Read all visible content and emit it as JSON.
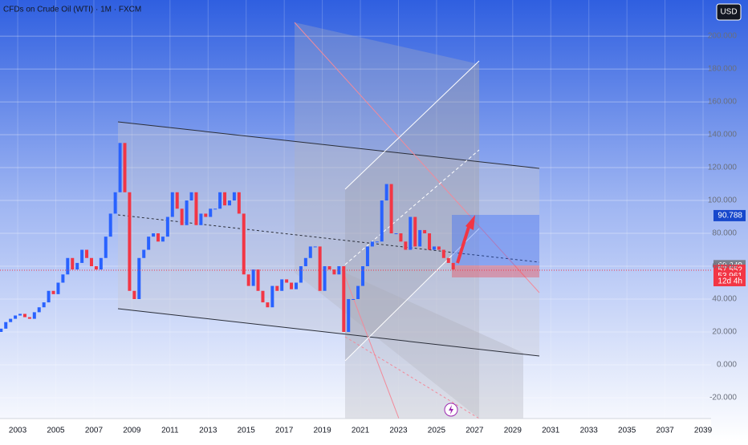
{
  "chart_data": {
    "type": "candlestick",
    "title": "CFDs on Crude Oil (WTI) · 1M · FXCM",
    "currency": "USD",
    "x": [
      2002.125,
      2002.375,
      2002.625,
      2002.875,
      2003.125,
      2003.375,
      2003.625,
      2003.875,
      2004.125,
      2004.375,
      2004.625,
      2004.875,
      2005.125,
      2005.375,
      2005.625,
      2005.875,
      2006.125,
      2006.375,
      2006.625,
      2006.875,
      2007.125,
      2007.375,
      2007.625,
      2007.875,
      2008.125,
      2008.375,
      2008.625,
      2008.875,
      2009.125,
      2009.375,
      2009.625,
      2009.875,
      2010.125,
      2010.375,
      2010.625,
      2010.875,
      2011.125,
      2011.375,
      2011.625,
      2011.875,
      2012.125,
      2012.375,
      2012.625,
      2012.875,
      2013.125,
      2013.375,
      2013.625,
      2013.875,
      2014.125,
      2014.375,
      2014.625,
      2014.875,
      2015.125,
      2015.375,
      2015.625,
      2015.875,
      2016.125,
      2016.375,
      2016.625,
      2016.875,
      2017.125,
      2017.375,
      2017.625,
      2017.875,
      2018.125,
      2018.375,
      2018.625,
      2018.875,
      2019.125,
      2019.375,
      2019.625,
      2019.875,
      2020.125,
      2020.375,
      2020.625,
      2020.875,
      2021.125,
      2021.375,
      2021.625,
      2021.875,
      2022.125,
      2022.375,
      2022.625,
      2022.875,
      2023.125,
      2023.375,
      2023.625,
      2023.875,
      2024.125,
      2024.375,
      2024.625,
      2024.875,
      2025.125,
      2025.375,
      2025.625,
      2025.875
    ],
    "open": [
      20,
      22,
      26,
      28,
      30,
      31,
      29,
      28,
      32,
      35,
      38,
      45,
      43,
      50,
      55,
      65,
      58,
      62,
      70,
      65,
      60,
      58,
      65,
      78,
      92,
      105,
      135,
      105,
      45,
      40,
      65,
      70,
      78,
      80,
      75,
      78,
      90,
      105,
      95,
      85,
      100,
      105,
      85,
      92,
      90,
      95,
      95,
      105,
      97,
      100,
      105,
      92,
      55,
      48,
      58,
      45,
      38,
      35,
      48,
      45,
      52,
      50,
      46,
      50,
      60,
      65,
      72,
      72,
      45,
      60,
      58,
      55,
      60,
      20,
      40,
      40,
      48,
      60,
      72,
      75,
      75,
      100,
      110,
      80,
      80,
      75,
      70,
      90,
      72,
      82,
      80,
      70,
      72,
      70,
      65,
      62
    ],
    "close": [
      22,
      26,
      28,
      30,
      31,
      29,
      28,
      32,
      35,
      38,
      45,
      43,
      50,
      55,
      65,
      58,
      62,
      70,
      65,
      60,
      58,
      65,
      78,
      92,
      105,
      135,
      105,
      45,
      40,
      65,
      70,
      78,
      80,
      75,
      78,
      90,
      105,
      95,
      85,
      100,
      105,
      85,
      92,
      90,
      95,
      95,
      105,
      97,
      100,
      105,
      92,
      55,
      48,
      58,
      45,
      38,
      35,
      48,
      45,
      52,
      50,
      46,
      50,
      60,
      65,
      72,
      72,
      45,
      60,
      58,
      55,
      60,
      20,
      40,
      40,
      48,
      60,
      72,
      75,
      75,
      100,
      110,
      80,
      80,
      75,
      70,
      90,
      72,
      82,
      80,
      70,
      72,
      70,
      65,
      62,
      58
    ],
    "up_color": "#2962ff",
    "down_color": "#f23645",
    "xlim": [
      2002.07,
      2039.42
    ],
    "xticks": [
      2003,
      2005,
      2007,
      2009,
      2011,
      2013,
      2015,
      2017,
      2019,
      2021,
      2023,
      2025,
      2027,
      2029,
      2031,
      2033,
      2035,
      2037,
      2039
    ],
    "ylim": [
      -32.7,
      222
    ],
    "yticks": [
      {
        "value": -20,
        "label": "-20.000"
      },
      {
        "value": 0,
        "label": "0.000"
      },
      {
        "value": 20,
        "label": "20.000"
      },
      {
        "value": 40,
        "label": "40.000"
      },
      {
        "value": 60,
        "label": "60.000"
      },
      {
        "value": 80,
        "label": "80.000"
      },
      {
        "value": 100,
        "label": "100.000"
      },
      {
        "value": 120,
        "label": "120.000"
      },
      {
        "value": 140,
        "label": "140.000"
      },
      {
        "value": 160,
        "label": "160.000"
      },
      {
        "value": 180,
        "label": "180.000"
      },
      {
        "value": 200,
        "label": "200.000"
      }
    ],
    "grid": true,
    "price_labels": [
      {
        "value": 90.788,
        "color": "#1848cc"
      },
      {
        "value": 60.349,
        "color": "#7a7f8c"
      },
      {
        "value": 57.552,
        "color": "#f23645"
      },
      {
        "value": 53.961,
        "color": "#f23645"
      }
    ],
    "countdown": "12d 4h"
  }
}
